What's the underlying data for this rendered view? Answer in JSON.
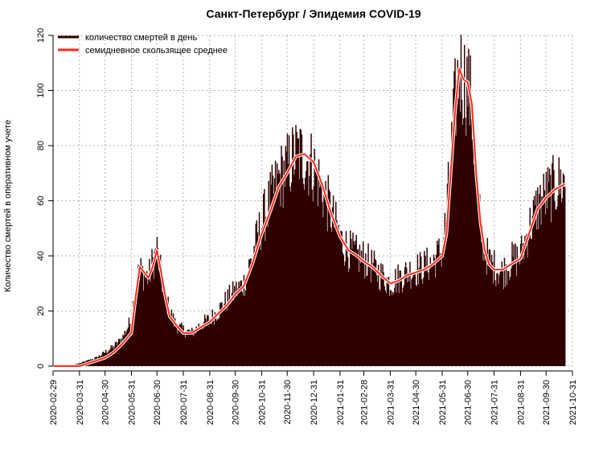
{
  "chart_data": {
    "type": "bar",
    "title": "Санкт-Петербург / Эпидемия COVID-19",
    "xlabel": "",
    "ylabel": "Количество смертей в оперативном учете",
    "ylim": [
      0,
      120
    ],
    "y_ticks": [
      "0",
      "20",
      "40",
      "60",
      "80",
      "100",
      "120"
    ],
    "x_ticks": [
      "2020-02-29",
      "2020-03-31",
      "2020-04-30",
      "2020-05-31",
      "2020-06-30",
      "2020-07-31",
      "2020-08-31",
      "2020-09-30",
      "2020-10-31",
      "2020-11-30",
      "2020-12-31",
      "2021-01-31",
      "2021-02-28",
      "2021-03-31",
      "2021-04-30",
      "2021-05-31",
      "2021-06-30",
      "2021-07-31",
      "2021-08-31",
      "2021-09-30",
      "2021-10-31"
    ],
    "x_range": [
      "2020-02-29",
      "2021-10-31"
    ],
    "data_start": "2020-03-01",
    "data_end": "2021-10-22",
    "grid": true,
    "legend_position": "top-left",
    "colors": {
      "bars": "#300000",
      "moving_average": "#ff2a1a",
      "moving_average_halo": "#ffffff",
      "grid": "#b4b4b4"
    },
    "series": [
      {
        "name": "количество смертей в день",
        "type": "bar",
        "x": [
          "2020-03-01",
          "2020-03-15",
          "2020-03-31",
          "2020-04-10",
          "2020-04-20",
          "2020-04-30",
          "2020-05-10",
          "2020-05-20",
          "2020-05-31",
          "2020-06-05",
          "2020-06-10",
          "2020-06-15",
          "2020-06-20",
          "2020-06-25",
          "2020-06-30",
          "2020-07-05",
          "2020-07-10",
          "2020-07-15",
          "2020-07-20",
          "2020-07-25",
          "2020-07-31",
          "2020-08-10",
          "2020-08-20",
          "2020-08-31",
          "2020-09-10",
          "2020-09-20",
          "2020-09-30",
          "2020-10-10",
          "2020-10-20",
          "2020-10-31",
          "2020-11-10",
          "2020-11-20",
          "2020-11-30",
          "2020-12-10",
          "2020-12-20",
          "2020-12-31",
          "2021-01-10",
          "2021-01-20",
          "2021-01-31",
          "2021-02-10",
          "2021-02-20",
          "2021-02-28",
          "2021-03-10",
          "2021-03-20",
          "2021-03-31",
          "2021-04-10",
          "2021-04-20",
          "2021-04-30",
          "2021-05-10",
          "2021-05-20",
          "2021-05-31",
          "2021-06-05",
          "2021-06-10",
          "2021-06-15",
          "2021-06-20",
          "2021-06-25",
          "2021-06-30",
          "2021-07-05",
          "2021-07-10",
          "2021-07-15",
          "2021-07-20",
          "2021-07-25",
          "2021-07-31",
          "2021-08-10",
          "2021-08-20",
          "2021-08-31",
          "2021-09-10",
          "2021-09-20",
          "2021-09-30",
          "2021-10-10",
          "2021-10-22"
        ],
        "values": [
          0,
          0,
          1,
          2,
          3,
          5,
          7,
          10,
          17,
          30,
          35,
          33,
          32,
          38,
          42,
          32,
          24,
          20,
          16,
          14,
          13,
          12,
          15,
          17,
          20,
          24,
          27,
          30,
          40,
          52,
          60,
          68,
          72,
          77,
          76,
          72,
          64,
          56,
          46,
          42,
          40,
          39,
          36,
          33,
          30,
          32,
          34,
          35,
          36,
          38,
          42,
          55,
          75,
          95,
          108,
          104,
          102,
          92,
          68,
          50,
          42,
          38,
          36,
          34,
          38,
          40,
          50,
          58,
          62,
          65,
          67
        ]
      },
      {
        "name": "семидневное скользящее среднее",
        "type": "line",
        "x": [
          "2020-03-01",
          "2020-03-15",
          "2020-03-31",
          "2020-04-10",
          "2020-04-20",
          "2020-04-30",
          "2020-05-10",
          "2020-05-20",
          "2020-05-31",
          "2020-06-05",
          "2020-06-10",
          "2020-06-15",
          "2020-06-20",
          "2020-06-25",
          "2020-06-30",
          "2020-07-05",
          "2020-07-10",
          "2020-07-15",
          "2020-07-20",
          "2020-07-25",
          "2020-07-31",
          "2020-08-10",
          "2020-08-20",
          "2020-08-31",
          "2020-09-10",
          "2020-09-20",
          "2020-09-30",
          "2020-10-10",
          "2020-10-20",
          "2020-10-31",
          "2020-11-10",
          "2020-11-20",
          "2020-11-30",
          "2020-12-10",
          "2020-12-20",
          "2020-12-31",
          "2021-01-10",
          "2021-01-20",
          "2021-01-31",
          "2021-02-10",
          "2021-02-20",
          "2021-02-28",
          "2021-03-10",
          "2021-03-20",
          "2021-03-31",
          "2021-04-10",
          "2021-04-20",
          "2021-04-30",
          "2021-05-10",
          "2021-05-20",
          "2021-05-31",
          "2021-06-05",
          "2021-06-10",
          "2021-06-15",
          "2021-06-20",
          "2021-06-25",
          "2021-06-30",
          "2021-07-05",
          "2021-07-10",
          "2021-07-15",
          "2021-07-20",
          "2021-07-25",
          "2021-07-31",
          "2021-08-10",
          "2021-08-20",
          "2021-08-31",
          "2021-09-10",
          "2021-09-20",
          "2021-09-30",
          "2021-10-10",
          "2021-10-22"
        ],
        "values": [
          0,
          0,
          0,
          1,
          2,
          3,
          5,
          8,
          12,
          25,
          36,
          34,
          32,
          36,
          42,
          34,
          25,
          18,
          16,
          14,
          12,
          12,
          14,
          16,
          19,
          22,
          26,
          29,
          37,
          48,
          56,
          65,
          70,
          76,
          77,
          74,
          66,
          56,
          47,
          42,
          40,
          38,
          36,
          33,
          30,
          31,
          33,
          34,
          35,
          37,
          40,
          48,
          70,
          92,
          108,
          104,
          103,
          95,
          70,
          52,
          42,
          37,
          35,
          35,
          37,
          39,
          48,
          57,
          61,
          64,
          66
        ]
      }
    ]
  }
}
